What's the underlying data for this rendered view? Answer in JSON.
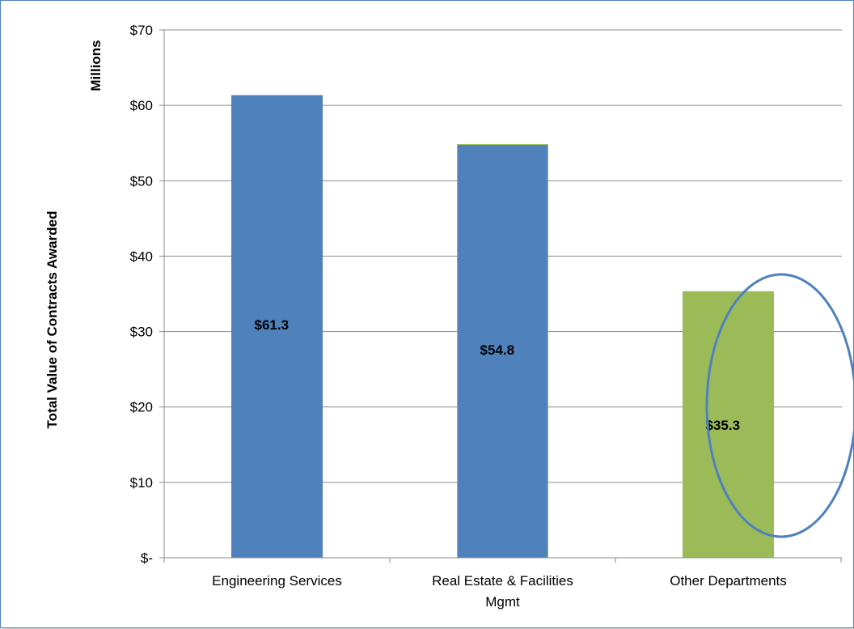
{
  "chart_data": {
    "type": "bar",
    "categories": [
      "Engineering Services",
      "Real Estate & Facilities Mgmt",
      "Other Departments"
    ],
    "category_lines": [
      [
        "Engineering Services"
      ],
      [
        "Real Estate & Facilities",
        "Mgmt"
      ],
      [
        "Other Departments"
      ]
    ],
    "values": [
      61.3,
      54.8,
      35.3
    ],
    "data_labels": [
      "$61.3",
      "$54.8",
      "$35.3"
    ],
    "bar_colors": [
      "#4f81bd",
      "#4f81bd",
      "#9bbb59"
    ],
    "ylabel": "Total Value of Contracts Awarded",
    "yunit_label": "Millions",
    "ylim": [
      0,
      70
    ],
    "yticks": [
      0,
      10,
      20,
      30,
      40,
      50,
      60,
      70
    ],
    "ytick_labels": [
      "$-",
      "$10",
      "$20",
      "$30",
      "$40",
      "$50",
      "$60",
      "$70"
    ],
    "grid": true,
    "highlight": {
      "shape": "ellipse",
      "target": "Other Departments",
      "color": "#4f81bd"
    }
  }
}
